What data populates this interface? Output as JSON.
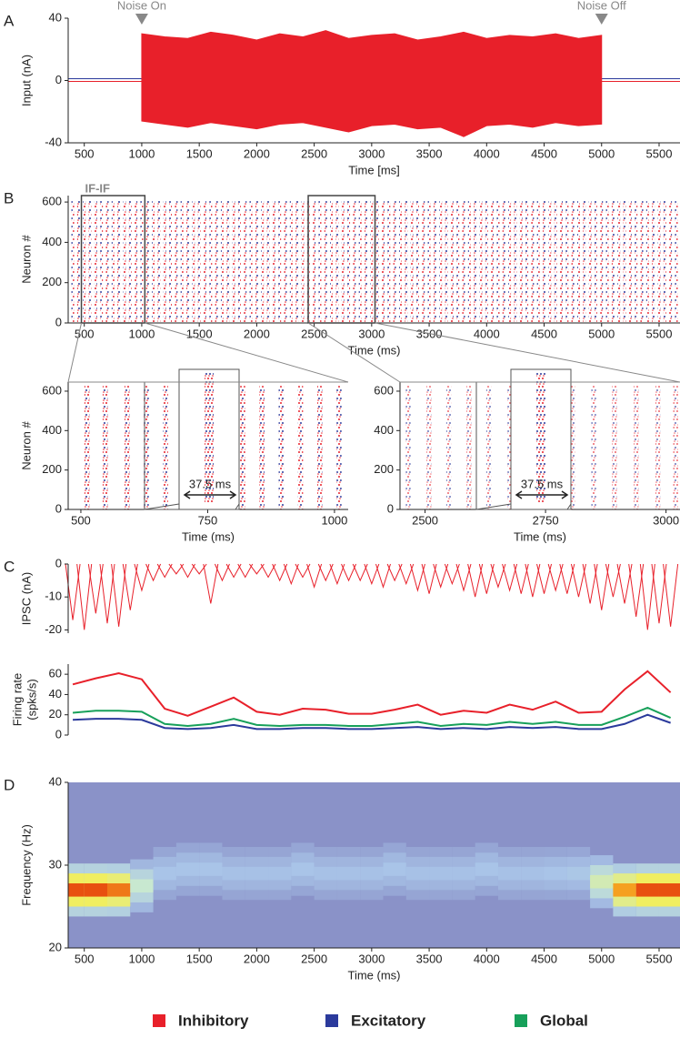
{
  "chart_data": [
    {
      "type": "noise",
      "panel_label": "A",
      "ylabel": "Input (nA)",
      "xlabel": "Time [ms]",
      "xlim": [
        360,
        5682
      ],
      "ylim": [
        -40,
        40
      ],
      "yticks": [
        -40,
        0,
        40
      ],
      "xticks": [
        500,
        1000,
        1500,
        2000,
        2500,
        3000,
        3500,
        4000,
        4500,
        5000,
        5500
      ],
      "color": "#e8202a",
      "x": [
        1000,
        1200,
        1400,
        1600,
        1800,
        2000,
        2200,
        2400,
        2600,
        2800,
        3000,
        3200,
        3400,
        3600,
        3800,
        4000,
        4200,
        4400,
        4600,
        4800,
        5000
      ],
      "upper": [
        30,
        28,
        27,
        31,
        29,
        26,
        30,
        28,
        32,
        27,
        29,
        30,
        26,
        28,
        31,
        27,
        29,
        28,
        30,
        27,
        29
      ],
      "lower": [
        -26,
        -28,
        -30,
        -27,
        -29,
        -31,
        -28,
        -27,
        -30,
        -33,
        -29,
        -28,
        -31,
        -30,
        -36,
        -29,
        -28,
        -30,
        -27,
        -29,
        -28
      ],
      "annotations": [
        {
          "text": "Noise On",
          "x": 1000
        },
        {
          "text": "Noise Off",
          "x": 5000
        }
      ]
    },
    {
      "type": "raster",
      "panel_label": "B",
      "ylabel": "Neuron #",
      "xlabel": "Time (ms)",
      "annotation": "IF-IF",
      "xlim": [
        360,
        5682
      ],
      "ylim": [
        0,
        632
      ],
      "yticks": [
        0,
        200,
        400,
        600
      ],
      "xticks": [
        500,
        1000,
        1500,
        2000,
        2500,
        3000,
        3500,
        4000,
        4500,
        5000,
        5500
      ],
      "colors": [
        "#e8202a",
        "#2b3a9c"
      ],
      "x": [
        400,
        450,
        500,
        550,
        600,
        650,
        700,
        750,
        800,
        850,
        900,
        950,
        1000,
        1050,
        1100,
        1150,
        1200,
        1250,
        1300,
        1350,
        1400,
        1450,
        1500,
        1550,
        1600,
        1650,
        1700,
        1750,
        1800,
        1850,
        1900,
        1950,
        2000,
        2050,
        2100,
        2150,
        2200,
        2250,
        2300,
        2350,
        2400,
        2450,
        2500,
        2550,
        2600,
        2650,
        2700,
        2750,
        2800,
        2850,
        2900,
        2950,
        3000,
        3050,
        3100,
        3150,
        3200,
        3250,
        3300,
        3350,
        3400,
        3450,
        3500,
        3550,
        3600,
        3650,
        3700,
        3750,
        3800,
        3850,
        3900,
        3950,
        4000,
        4050,
        4100,
        4150,
        4200,
        4250,
        4300,
        4350,
        4400,
        4450,
        4500,
        4550,
        4600,
        4650,
        4700,
        4750,
        4800,
        4850,
        4900,
        4950,
        5000,
        5050,
        5100,
        5150,
        5200,
        5250,
        5300,
        5350,
        5400,
        5450,
        5500,
        5550,
        5600,
        5650
      ]
    },
    {
      "type": "raster",
      "ylabel": "Neuron #",
      "xlabel": "Time (ms)",
      "annotation": "37.5 ms",
      "xlim": [
        475,
        1027
      ],
      "ylim": [
        0,
        646
      ],
      "yticks": [
        0,
        200,
        400,
        600
      ],
      "xticks": [
        500,
        750,
        1000
      ],
      "colors": [
        "#e8202a",
        "#2b3a9c"
      ],
      "x": [
        512,
        548,
        591,
        629,
        667,
        706,
        743,
        781,
        819,
        857,
        895,
        933,
        971,
        1009
      ]
    },
    {
      "type": "raster",
      "xlabel": "Time (ms)",
      "annotation": "37.5 ms",
      "xlim": [
        2448,
        3029
      ],
      "ylim": [
        0,
        646
      ],
      "yticks": [
        0,
        200,
        400,
        600
      ],
      "xticks": [
        2500,
        2750,
        3000
      ],
      "colors": [
        "#e8202a",
        "#2b3a9c"
      ],
      "x": [
        2465,
        2508,
        2549,
        2591,
        2632,
        2676,
        2720,
        2762,
        2806,
        2850,
        2893,
        2938,
        2983,
        3020
      ]
    },
    {
      "type": "spikes",
      "panel_label": "C",
      "ylabel": "IPSC (nA)",
      "xlim": [
        360,
        5682
      ],
      "ylim": [
        -21,
        0
      ],
      "yticks": [
        -20,
        -10,
        0
      ],
      "color": "#e8202a",
      "x": [
        400,
        500,
        600,
        700,
        800,
        900,
        1000,
        1100,
        1200,
        1300,
        1400,
        1500,
        1600,
        1700,
        1800,
        1900,
        2000,
        2100,
        2200,
        2300,
        2400,
        2500,
        2600,
        2700,
        2800,
        2900,
        3000,
        3100,
        3200,
        3300,
        3400,
        3500,
        3600,
        3700,
        3800,
        3900,
        4000,
        4100,
        4200,
        4300,
        4400,
        4500,
        4600,
        4700,
        4800,
        4900,
        5000,
        5100,
        5200,
        5300,
        5400,
        5500,
        5600
      ],
      "values": [
        -17,
        -20,
        -15,
        -18,
        -19,
        -14,
        -8,
        -5,
        -4,
        -3,
        -4,
        -3,
        -12,
        -5,
        -4,
        -4,
        -3,
        -4,
        -5,
        -6,
        -4,
        -7,
        -5,
        -6,
        -5,
        -5,
        -6,
        -7,
        -5,
        -6,
        -8,
        -9,
        -7,
        -6,
        -8,
        -10,
        -9,
        -7,
        -8,
        -9,
        -10,
        -9,
        -8,
        -9,
        -10,
        -12,
        -14,
        -10,
        -12,
        -16,
        -20,
        -18,
        -19
      ]
    },
    {
      "type": "line",
      "ylabel": [
        "Firing rate",
        "(spks/s)"
      ],
      "xlim": [
        360,
        5682
      ],
      "ylim": [
        0,
        70
      ],
      "yticks": [
        0,
        20,
        40,
        60
      ],
      "x": [
        400,
        600,
        800,
        1000,
        1200,
        1400,
        1600,
        1800,
        2000,
        2200,
        2400,
        2600,
        2800,
        3000,
        3200,
        3400,
        3600,
        3800,
        4000,
        4200,
        4400,
        4600,
        4800,
        5000,
        5200,
        5400,
        5600
      ],
      "series": [
        {
          "name": "Inhibitory",
          "color": "#e8202a",
          "values": [
            50,
            56,
            61,
            55,
            26,
            19,
            28,
            37,
            23,
            20,
            26,
            25,
            21,
            21,
            25,
            30,
            20,
            24,
            22,
            30,
            25,
            33,
            22,
            23,
            45,
            63,
            42
          ]
        },
        {
          "name": "Excitatory",
          "color": "#2b3a9c",
          "values": [
            15,
            16,
            16,
            15,
            7,
            6,
            7,
            10,
            6,
            6,
            7,
            7,
            6,
            6,
            7,
            8,
            6,
            7,
            6,
            8,
            7,
            8,
            6,
            6,
            11,
            20,
            12
          ]
        },
        {
          "name": "Global",
          "color": "#17a05a",
          "values": [
            22,
            24,
            24,
            23,
            11,
            9,
            11,
            16,
            10,
            9,
            10,
            10,
            9,
            9,
            11,
            13,
            9,
            11,
            10,
            13,
            11,
            13,
            10,
            10,
            18,
            27,
            17
          ]
        }
      ]
    },
    {
      "type": "ridge",
      "panel_label": "D",
      "ylabel": "Frequency (Hz)",
      "xlabel": "Time (ms)",
      "xlim": [
        360,
        5682
      ],
      "ylim": [
        20,
        40
      ],
      "yticks": [
        20,
        30,
        40
      ],
      "xticks": [
        500,
        1000,
        1500,
        2000,
        2500,
        3000,
        3500,
        4000,
        4500,
        5000,
        5500
      ],
      "background": "#8a92c8",
      "x": [
        400,
        600,
        800,
        1000,
        1200,
        1400,
        1600,
        1800,
        2000,
        2200,
        2400,
        2600,
        2800,
        3000,
        3200,
        3400,
        3600,
        3800,
        4000,
        4200,
        4400,
        4600,
        4800,
        5000,
        5200,
        5400,
        5600
      ],
      "values": [
        27,
        27,
        27,
        27.5,
        29,
        29.5,
        29.5,
        29,
        29,
        29,
        29.5,
        29,
        29,
        29,
        29.5,
        29,
        29,
        29,
        29.5,
        29,
        29,
        29,
        29,
        28,
        27,
        27,
        27
      ],
      "power": [
        1,
        1,
        0.95,
        0.55,
        0.3,
        0.3,
        0.3,
        0.28,
        0.28,
        0.28,
        0.3,
        0.28,
        0.28,
        0.28,
        0.3,
        0.28,
        0.28,
        0.28,
        0.3,
        0.28,
        0.28,
        0.3,
        0.32,
        0.6,
        0.9,
        1,
        1
      ]
    }
  ]
}
